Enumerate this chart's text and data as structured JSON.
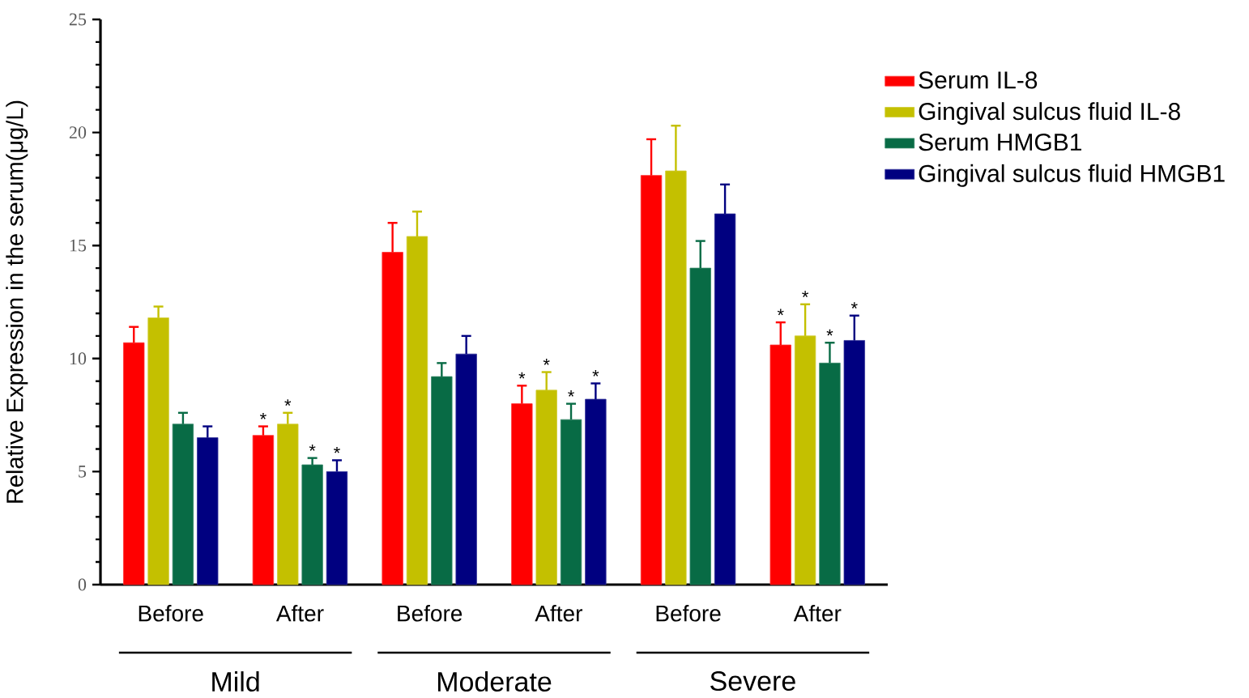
{
  "chart_data": {
    "type": "bar",
    "ylabel": "Relative Expression in the serum(μg/L)",
    "categories": [
      "Before",
      "After",
      "Before",
      "After",
      "Before",
      "After"
    ],
    "series": [
      {
        "name": "Serum IL-8",
        "color": "#ff0000",
        "values": [
          10.7,
          6.6,
          14.7,
          8.0,
          18.1,
          10.6
        ],
        "errors": [
          0.7,
          0.4,
          1.3,
          0.8,
          1.6,
          1.0
        ],
        "value_labels": [
          null,
          "*",
          null,
          "*",
          null,
          "*"
        ]
      },
      {
        "name": "Gingival sulcus fluid IL-8",
        "color": "#c4c000",
        "values": [
          11.8,
          7.1,
          15.4,
          8.6,
          18.3,
          11.0
        ],
        "errors": [
          0.5,
          0.5,
          1.1,
          0.8,
          2.0,
          1.4
        ],
        "value_labels": [
          null,
          "*",
          null,
          "*",
          null,
          "*"
        ]
      },
      {
        "name": "Serum HMGB1",
        "color": "#086b45",
        "values": [
          7.1,
          5.3,
          9.2,
          7.3,
          14.0,
          9.8
        ],
        "errors": [
          0.5,
          0.3,
          0.6,
          0.7,
          1.2,
          0.9
        ],
        "value_labels": [
          null,
          "*",
          null,
          "*",
          null,
          "*"
        ]
      },
      {
        "name": "Gingival sulcus fluid HMGB1",
        "color": "#000080",
        "values": [
          6.5,
          5.0,
          10.2,
          8.2,
          16.4,
          10.8
        ],
        "errors": [
          0.5,
          0.5,
          0.8,
          0.7,
          1.3,
          1.1
        ],
        "value_labels": [
          null,
          "*",
          null,
          "*",
          null,
          "*"
        ]
      }
    ],
    "ylim": [
      0,
      25
    ],
    "yticks": [
      0,
      5,
      10,
      15,
      20,
      25
    ],
    "legend": "top right",
    "annotations": [
      "Mild",
      "Moderate",
      "Severe"
    ]
  }
}
